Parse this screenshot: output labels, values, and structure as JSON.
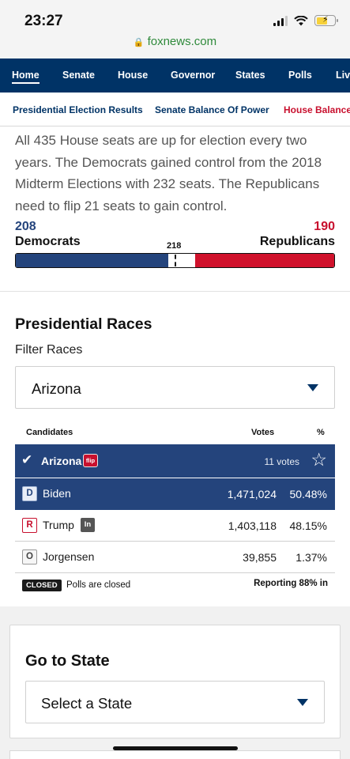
{
  "status_bar": {
    "time": "23:27",
    "url": "foxnews.com",
    "icons": [
      "signal-icon",
      "wifi-icon",
      "battery-charging-icon",
      "lock-icon"
    ]
  },
  "nav": {
    "items": [
      "Home",
      "Senate",
      "House",
      "Governor",
      "States",
      "Polls",
      "Live"
    ],
    "active": "Home"
  },
  "subnav": {
    "items": [
      "Presidential Election Results",
      "Senate Balance Of Power",
      "House Balance Of Power"
    ],
    "active": "House Balance Of Power"
  },
  "intro": "All 435 House seats are up for election every two years. The Democrats gained control from the 2018 Midterm Elections with 232 seats. The Republicans need to flip 21 seats to gain control.",
  "balance": {
    "dem_seats": "208",
    "dem_label": "Democrats",
    "rep_seats": "190",
    "rep_label": "Republicans",
    "majority": "218",
    "total_seats": 435,
    "colors": {
      "dem": "#24447c",
      "rep": "#d0122c"
    }
  },
  "races": {
    "title": "Presidential Races",
    "filter_label": "Filter Races",
    "selected_state": "Arizona",
    "columns": {
      "candidates": "Candidates",
      "votes": "Votes",
      "pct": "%"
    },
    "state_row": {
      "name": "Arizona",
      "badge": "flip",
      "votes": "11 votes"
    },
    "candidates": [
      {
        "party": "D",
        "name": "Biden",
        "votes": "1,471,024",
        "pct": "50.48%"
      },
      {
        "party": "R",
        "name": "Trump",
        "incumbent": "In",
        "votes": "1,403,118",
        "pct": "48.15%"
      },
      {
        "party": "O",
        "name": "Jorgensen",
        "votes": "39,855",
        "pct": "1.37%"
      }
    ],
    "status_badge": "CLOSED",
    "status_text": "Polls are closed",
    "reporting": "Reporting 88% in"
  },
  "goto_state": {
    "title": "Go to State",
    "placeholder": "Select a State"
  }
}
